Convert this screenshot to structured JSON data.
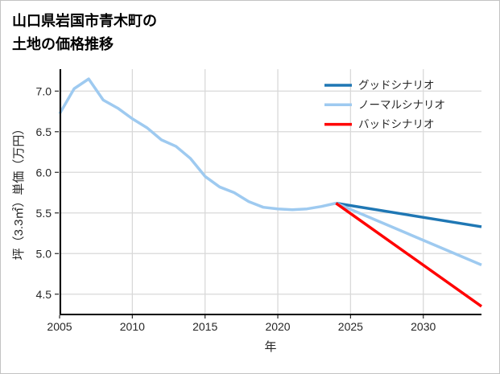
{
  "chart_data": {
    "type": "line",
    "title": "山口県岩国市青木町の土地の価格推移",
    "title_lines": [
      "山口県岩国市青木町の",
      "土地の価格推移"
    ],
    "xlabel": "年",
    "ylabel": "坪（3.3㎡）単価（万円）",
    "xlim": [
      2005,
      2034
    ],
    "ylim": [
      4.25,
      7.27
    ],
    "xticks": [
      2005,
      2010,
      2015,
      2020,
      2025,
      2030
    ],
    "yticks": [
      4.5,
      5.0,
      5.5,
      6.0,
      6.5,
      7.0
    ],
    "grid": true,
    "legend_position": "upper right",
    "colors": {
      "good": "#1f77b4",
      "normal": "#9ecaf0",
      "bad": "#ff0000",
      "grid": "#d9d9d9",
      "spine": "#000000",
      "tick_text": "#262626"
    },
    "series": [
      {
        "id": "history",
        "label": "",
        "color": "#9ecaf0",
        "x": [
          2005,
          2006,
          2007,
          2008,
          2009,
          2010,
          2011,
          2012,
          2013,
          2014,
          2015,
          2016,
          2017,
          2018,
          2019,
          2020,
          2021,
          2022,
          2023,
          2024
        ],
        "y": [
          6.72,
          7.03,
          7.15,
          6.89,
          6.79,
          6.66,
          6.55,
          6.4,
          6.32,
          6.17,
          5.95,
          5.82,
          5.75,
          5.64,
          5.57,
          5.55,
          5.54,
          5.55,
          5.58,
          5.62
        ]
      },
      {
        "id": "good-scenario",
        "label": "グッドシナリオ",
        "color": "#1f77b4",
        "x": [
          2024,
          2034
        ],
        "y": [
          5.62,
          5.33
        ]
      },
      {
        "id": "normal-scenario",
        "label": "ノーマルシナリオ",
        "color": "#9ecaf0",
        "x": [
          2024,
          2034
        ],
        "y": [
          5.62,
          4.86
        ]
      },
      {
        "id": "bad-scenario",
        "label": "バッドシナリオ",
        "color": "#ff0000",
        "x": [
          2024,
          2034
        ],
        "y": [
          5.62,
          4.35
        ]
      }
    ],
    "legend": [
      {
        "label": "グッドシナリオ",
        "color": "#1f77b4"
      },
      {
        "label": "ノーマルシナリオ",
        "color": "#9ecaf0"
      },
      {
        "label": "バッドシナリオ",
        "color": "#ff0000"
      }
    ]
  }
}
